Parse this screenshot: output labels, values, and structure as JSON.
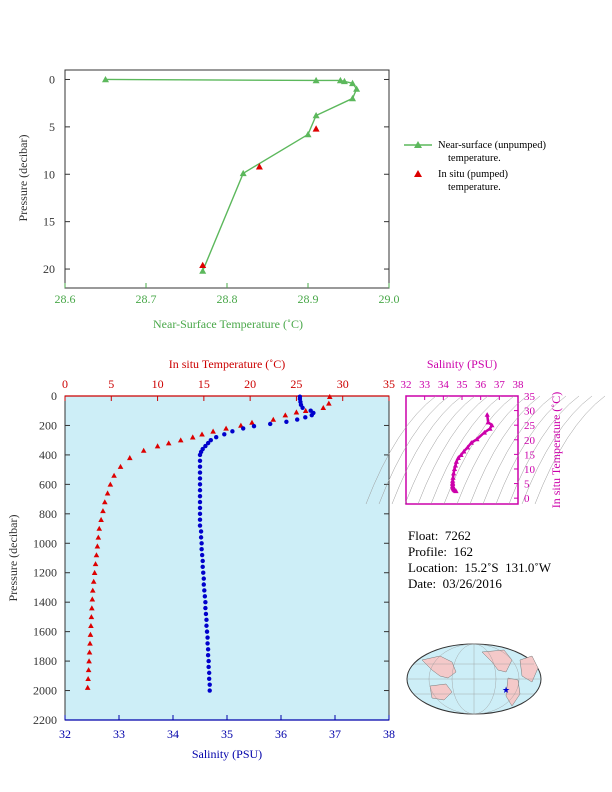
{
  "chart_data": [
    {
      "type": "line",
      "xlabel": "Near-Surface Temperature (˚C)",
      "ylabel": "Pressure (decibar)",
      "xlim": [
        28.6,
        29.0
      ],
      "ylim": [
        22,
        -1
      ],
      "xticks": [
        "28.6",
        "28.7",
        "28.8",
        "28.9",
        "29.0"
      ],
      "yticks": [
        "0",
        "5",
        "10",
        "15",
        "20"
      ],
      "series": [
        {
          "name": "Near-surface (unpumped) temperature.",
          "color": "#5cb85c",
          "marker": "triangle",
          "points": [
            [
              28.65,
              0.0
            ],
            [
              28.91,
              0.1
            ],
            [
              28.94,
              0.1
            ],
            [
              28.945,
              0.2
            ],
            [
              28.955,
              0.4
            ],
            [
              28.96,
              1.0
            ],
            [
              28.955,
              2.0
            ],
            [
              28.91,
              3.8
            ],
            [
              28.9,
              5.8
            ],
            [
              28.82,
              9.9
            ],
            [
              28.77,
              20.2
            ]
          ]
        },
        {
          "name": "In situ (pumped) temperature.",
          "color": "#dd0000",
          "marker": "triangle",
          "line": false,
          "points": [
            [
              28.91,
              5.2
            ],
            [
              28.84,
              9.2
            ],
            [
              28.77,
              19.6
            ]
          ]
        }
      ],
      "legend": [
        {
          "line1": "Near-surface (unpumped)",
          "line2": "temperature."
        },
        {
          "line1": "In situ (pumped)",
          "line2": "temperature."
        }
      ]
    },
    {
      "type": "scatter",
      "background": "#cdeef7",
      "ylabel": "Pressure (decibar)",
      "ylim": [
        2200,
        0
      ],
      "yticks": [
        "0",
        "200",
        "400",
        "600",
        "800",
        "1000",
        "1200",
        "1400",
        "1600",
        "1800",
        "2000",
        "2200"
      ],
      "top_axis": {
        "label": "In situ Temperature (˚C)",
        "range": [
          0,
          35
        ],
        "ticks": [
          "0",
          "5",
          "10",
          "15",
          "20",
          "25",
          "30",
          "35"
        ],
        "color": "#cc0000"
      },
      "bottom_axis": {
        "label": "Salinity (PSU)",
        "range": [
          32,
          38
        ],
        "ticks": [
          "32",
          "33",
          "34",
          "35",
          "36",
          "37",
          "38"
        ],
        "color": "#0000aa"
      },
      "series": [
        {
          "name": "In situ Temperature",
          "color": "#dd0000",
          "marker": "triangle",
          "points": [
            [
              28.6,
              5
            ],
            [
              28.5,
              50
            ],
            [
              27.9,
              80
            ],
            [
              26.0,
              100
            ],
            [
              25.0,
              110
            ],
            [
              23.8,
              130
            ],
            [
              22.5,
              160
            ],
            [
              20.2,
              180
            ],
            [
              19.0,
              200
            ],
            [
              17.4,
              220
            ],
            [
              16.0,
              240
            ],
            [
              14.8,
              260
            ],
            [
              13.8,
              280
            ],
            [
              12.5,
              300
            ],
            [
              11.2,
              320
            ],
            [
              10.0,
              340
            ],
            [
              8.5,
              370
            ],
            [
              7.0,
              420
            ],
            [
              6.0,
              480
            ],
            [
              5.3,
              540
            ],
            [
              4.9,
              600
            ],
            [
              4.6,
              660
            ],
            [
              4.3,
              720
            ],
            [
              4.1,
              780
            ],
            [
              3.9,
              840
            ],
            [
              3.7,
              900
            ],
            [
              3.6,
              960
            ],
            [
              3.5,
              1020
            ],
            [
              3.4,
              1080
            ],
            [
              3.3,
              1140
            ],
            [
              3.2,
              1200
            ],
            [
              3.1,
              1260
            ],
            [
              3.0,
              1320
            ],
            [
              2.95,
              1380
            ],
            [
              2.9,
              1440
            ],
            [
              2.85,
              1500
            ],
            [
              2.8,
              1560
            ],
            [
              2.75,
              1620
            ],
            [
              2.7,
              1680
            ],
            [
              2.65,
              1740
            ],
            [
              2.6,
              1800
            ],
            [
              2.55,
              1860
            ],
            [
              2.5,
              1920
            ],
            [
              2.45,
              1980
            ]
          ]
        },
        {
          "name": "Salinity",
          "color": "#0000cc",
          "marker": "circle",
          "points": [
            [
              36.35,
              5
            ],
            [
              36.35,
              20
            ],
            [
              36.36,
              40
            ],
            [
              36.37,
              60
            ],
            [
              36.4,
              80
            ],
            [
              36.55,
              100
            ],
            [
              36.6,
              115
            ],
            [
              36.57,
              130
            ],
            [
              36.45,
              145
            ],
            [
              36.3,
              160
            ],
            [
              36.1,
              175
            ],
            [
              35.8,
              190
            ],
            [
              35.5,
              205
            ],
            [
              35.3,
              220
            ],
            [
              35.1,
              240
            ],
            [
              34.95,
              260
            ],
            [
              34.8,
              280
            ],
            [
              34.7,
              300
            ],
            [
              34.65,
              320
            ],
            [
              34.6,
              340
            ],
            [
              34.55,
              360
            ],
            [
              34.52,
              380
            ],
            [
              34.5,
              400
            ],
            [
              34.5,
              440
            ],
            [
              34.5,
              480
            ],
            [
              34.5,
              520
            ],
            [
              34.5,
              560
            ],
            [
              34.5,
              600
            ],
            [
              34.5,
              640
            ],
            [
              34.5,
              680
            ],
            [
              34.5,
              720
            ],
            [
              34.5,
              760
            ],
            [
              34.5,
              800
            ],
            [
              34.5,
              840
            ],
            [
              34.5,
              880
            ],
            [
              34.52,
              920
            ],
            [
              34.52,
              960
            ],
            [
              34.53,
              1000
            ],
            [
              34.53,
              1040
            ],
            [
              34.54,
              1080
            ],
            [
              34.55,
              1120
            ],
            [
              34.55,
              1160
            ],
            [
              34.56,
              1200
            ],
            [
              34.57,
              1240
            ],
            [
              34.57,
              1280
            ],
            [
              34.58,
              1320
            ],
            [
              34.59,
              1360
            ],
            [
              34.6,
              1400
            ],
            [
              34.6,
              1440
            ],
            [
              34.61,
              1480
            ],
            [
              34.62,
              1520
            ],
            [
              34.62,
              1560
            ],
            [
              34.63,
              1600
            ],
            [
              34.64,
              1640
            ],
            [
              34.64,
              1680
            ],
            [
              34.65,
              1720
            ],
            [
              34.65,
              1760
            ],
            [
              34.66,
              1800
            ],
            [
              34.66,
              1840
            ],
            [
              34.67,
              1880
            ],
            [
              34.67,
              1920
            ],
            [
              34.68,
              1960
            ],
            [
              34.68,
              2000
            ]
          ]
        }
      ]
    },
    {
      "type": "scatter",
      "xlabel": "Salinity (PSU)",
      "ylabel": "In situ Temperature (˚C)",
      "xlim": [
        32,
        38
      ],
      "ylim": [
        -2,
        35
      ],
      "xticks": [
        "32",
        "33",
        "34",
        "35",
        "36",
        "37",
        "38"
      ],
      "yticks": [
        "0",
        "5",
        "10",
        "15",
        "20",
        "25",
        "30",
        "35"
      ],
      "color": "#cc00aa",
      "points": [
        [
          36.35,
          28.6
        ],
        [
          36.4,
          26
        ],
        [
          36.6,
          25
        ],
        [
          36.5,
          23.8
        ],
        [
          36.2,
          22.5
        ],
        [
          35.8,
          20.2
        ],
        [
          35.5,
          19
        ],
        [
          35.3,
          17.4
        ],
        [
          35.1,
          16
        ],
        [
          34.95,
          14.8
        ],
        [
          34.8,
          13.8
        ],
        [
          34.7,
          12.5
        ],
        [
          34.65,
          11.2
        ],
        [
          34.6,
          10
        ],
        [
          34.55,
          8.5
        ],
        [
          34.52,
          7
        ],
        [
          34.5,
          6
        ],
        [
          34.5,
          5.3
        ],
        [
          34.5,
          4.9
        ],
        [
          34.5,
          4.3
        ],
        [
          34.52,
          3.9
        ],
        [
          34.53,
          3.5
        ],
        [
          34.55,
          3.2
        ],
        [
          34.58,
          2.95
        ],
        [
          34.61,
          2.8
        ],
        [
          34.64,
          2.6
        ],
        [
          34.68,
          2.45
        ]
      ]
    }
  ],
  "info": {
    "float": "Float:  7262",
    "profile": "Profile:  162",
    "location": "Location:  15.2˚S  131.0˚W",
    "date": "Date:  03/26/2016"
  }
}
